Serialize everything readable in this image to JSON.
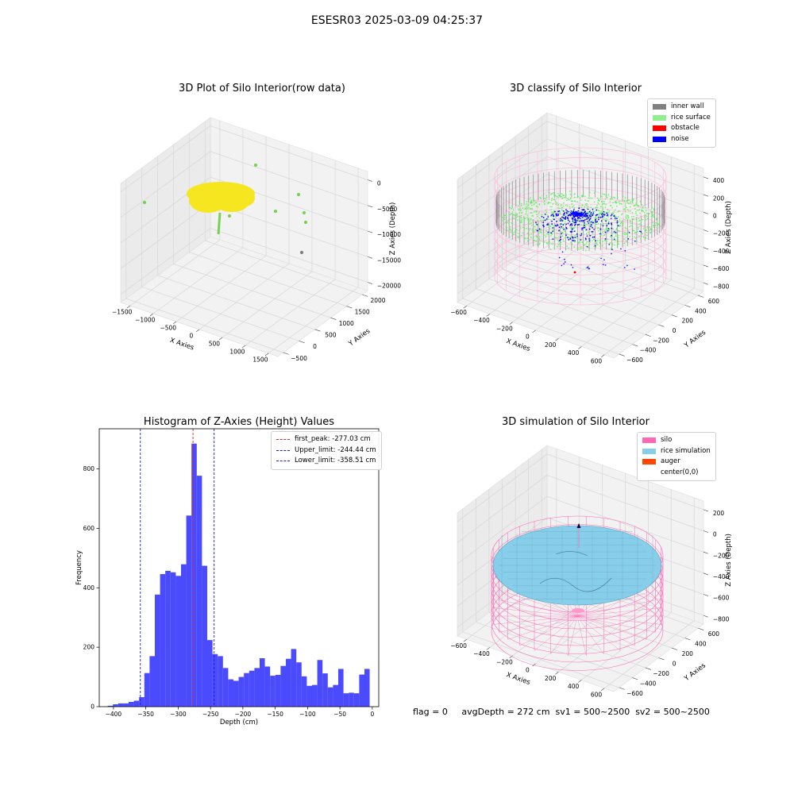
{
  "suptitle": "ESESR03 2025-03-09 04:25:37",
  "footer": {
    "text": "flag = 0     avgDepth = 272 cm  sv1 = 500~2500  sv2 = 500~2500"
  },
  "chart_data": [
    {
      "type": "scatter",
      "projection": "3d",
      "title": "3D Plot of Silo Interior(row data)",
      "xlabel": "X Axies",
      "ylabel": "Y Axies",
      "zlabel": "Z Axies (Depth)",
      "x_ticks": [
        "−1500",
        "−1000",
        "−500",
        "0",
        "500",
        "1000",
        "1500"
      ],
      "y_ticks": [
        "−500",
        "0",
        "500",
        "1000",
        "1500",
        "2000"
      ],
      "z_ticks": [
        "0",
        "−5000",
        "−10000",
        "−15000",
        "−20000"
      ],
      "colors": {
        "main": "#f5e61f",
        "sparse": "#7ad151",
        "grey": "#808080"
      }
    },
    {
      "type": "scatter",
      "projection": "3d",
      "title": "3D classify of Silo Interior",
      "xlabel": "X Axies",
      "ylabel": "Y Axies",
      "zlabel": "Z Axies (Depth)",
      "x_ticks": [
        "−600",
        "−400",
        "−200",
        "0",
        "200",
        "400",
        "600"
      ],
      "y_ticks": [
        "−600",
        "−400",
        "−200",
        "0",
        "200",
        "400",
        "600"
      ],
      "z_ticks": [
        "400",
        "200",
        "0",
        "−200",
        "−400",
        "−600",
        "−800"
      ],
      "legend": [
        {
          "label": "inner wall",
          "color": "#808080"
        },
        {
          "label": "rice surface",
          "color": "#90ee90"
        },
        {
          "label": "obstacle",
          "color": "#ff0000"
        },
        {
          "label": "noise",
          "color": "#0000ff"
        }
      ]
    },
    {
      "type": "bar",
      "title": "Histogram of Z-Axies (Height) Values",
      "xlabel": "Depth (cm)",
      "ylabel": "Frequency",
      "xlim": [
        -422,
        10
      ],
      "ylim": [
        0,
        935
      ],
      "x_ticks": [
        -400,
        -350,
        -300,
        -250,
        -200,
        -150,
        -100,
        -50,
        0
      ],
      "x_tick_labels": [
        "−400",
        "−350",
        "−300",
        "−250",
        "−200",
        "−150",
        "−100",
        "−50",
        "0"
      ],
      "y_ticks": [
        0,
        200,
        400,
        600,
        800
      ],
      "bin_start": -409,
      "bin_width": 8.1,
      "color": "#4a4aff",
      "values": [
        3,
        8,
        11,
        11,
        16,
        20,
        32,
        113,
        170,
        377,
        446,
        457,
        452,
        440,
        479,
        643,
        885,
        777,
        474,
        224,
        177,
        170,
        130,
        92,
        87,
        100,
        113,
        121,
        130,
        163,
        135,
        104,
        107,
        137,
        161,
        194,
        149,
        102,
        70,
        73,
        157,
        112,
        65,
        73,
        127,
        45,
        47,
        45,
        108,
        127
      ],
      "lines": [
        {
          "label": "first_peak: -277.03 cm",
          "x": -277.03,
          "color": "#d62728"
        },
        {
          "label": "Upper_limit: -244.44 cm",
          "x": -244.44,
          "color": "#1f1fbf"
        },
        {
          "label": "Lower_limit: -358.51 cm",
          "x": -358.51,
          "color": "#1f1fbf"
        }
      ]
    },
    {
      "type": "surface",
      "projection": "3d",
      "title": "3D simulation of Silo Interior",
      "xlabel": "X Axies",
      "ylabel": "Y Axies",
      "zlabel": "Z Axies (Depth)",
      "x_ticks": [
        "−600",
        "−400",
        "−200",
        "0",
        "200",
        "400",
        "600"
      ],
      "y_ticks": [
        "−600",
        "−400",
        "−200",
        "0",
        "200",
        "400",
        "600"
      ],
      "z_ticks": [
        "200",
        "0",
        "−200",
        "−400",
        "−600",
        "−800"
      ],
      "legend": [
        {
          "label": "silo",
          "color": "#ff69b4"
        },
        {
          "label": "rice simulation",
          "color": "#87ceeb"
        },
        {
          "label": "auger",
          "color": "#ff4500"
        },
        {
          "label": "center(0,0)",
          "color": ""
        }
      ]
    }
  ]
}
